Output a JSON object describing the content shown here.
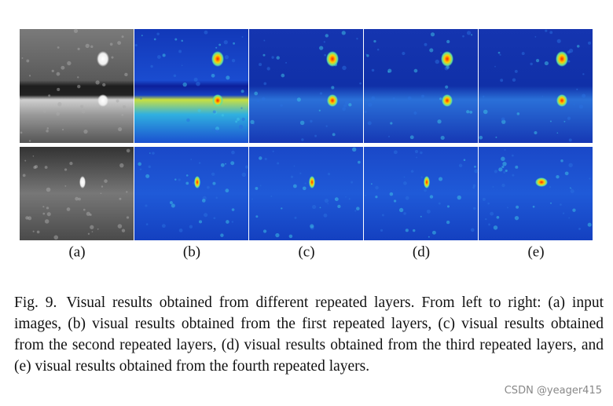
{
  "figure": {
    "panel_labels": [
      "(a)",
      "(b)",
      "(c)",
      "(d)",
      "(e)"
    ],
    "caption": {
      "label": "Fig. 9.",
      "text": "Visual results obtained from different repeated layers. From left to right: (a) input images, (b)  visual results obtained from the first repeated layers, (c) visual results obtained from the second repeated layers, (d) visual results obtained from the third repeated layers, and (e) visual results obtained from the fourth repeated layers."
    }
  },
  "watermark": "CSDN @yeager415"
}
